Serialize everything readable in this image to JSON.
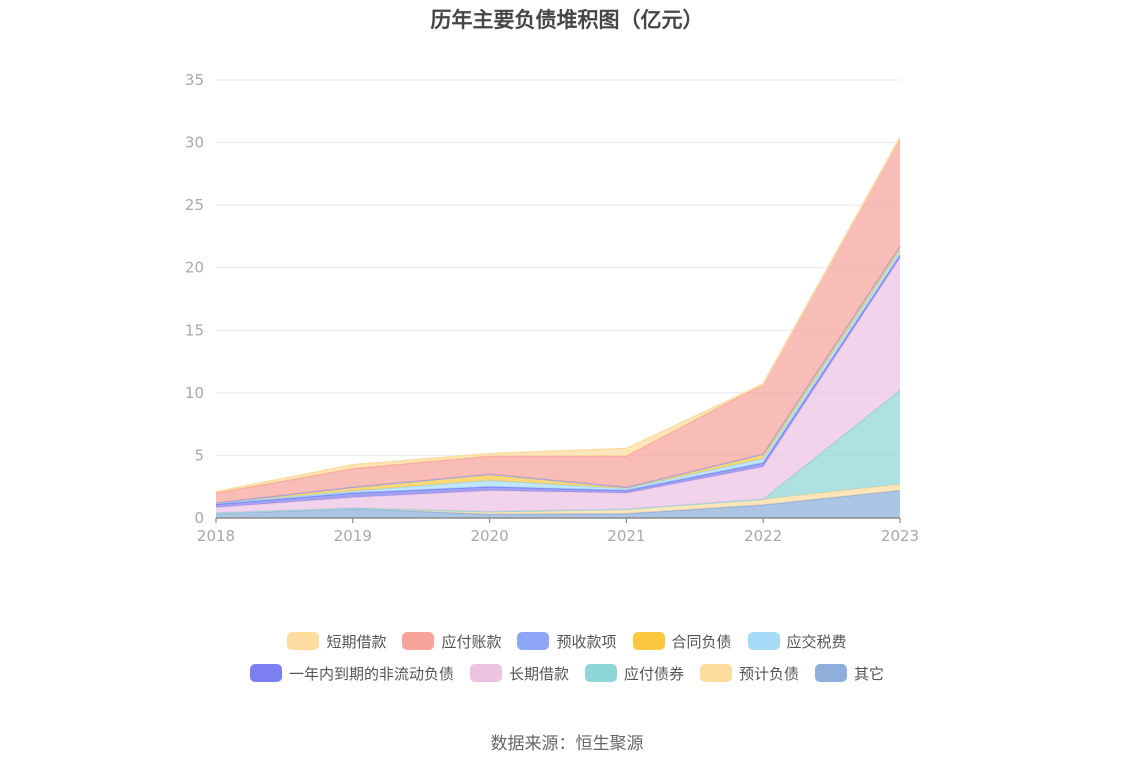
{
  "title": "历年主要负债堆积图（亿元）",
  "source": "数据来源：恒生聚源",
  "chart_data": {
    "type": "area",
    "stacked": true,
    "x": [
      "2018",
      "2019",
      "2020",
      "2021",
      "2022",
      "2023"
    ],
    "ylim": [
      0,
      35
    ],
    "yticks": [
      0,
      5,
      10,
      15,
      20,
      25,
      30,
      35
    ],
    "grid": true,
    "legend_position": "bottom",
    "series": [
      {
        "name": "其它",
        "color": "#8eaedb",
        "values": [
          0.35,
          0.75,
          0.3,
          0.35,
          1.05,
          2.2
        ]
      },
      {
        "name": "预计负债",
        "color": "#fddca0",
        "values": [
          0.05,
          0.05,
          0.2,
          0.35,
          0.45,
          0.5
        ]
      },
      {
        "name": "应付债券",
        "color": "#8fd6d6",
        "values": [
          0,
          0,
          0,
          0,
          0,
          7.5
        ]
      },
      {
        "name": "长期借款",
        "color": "#ecc3e3",
        "values": [
          0.45,
          0.85,
          1.7,
          1.3,
          2.6,
          10.6
        ]
      },
      {
        "name": "一年内到期的非流动负债",
        "color": "#7b7ff0",
        "values": [
          0.25,
          0.35,
          0.3,
          0.2,
          0.3,
          0.2
        ]
      },
      {
        "name": "应交税费",
        "color": "#a6dcf8",
        "values": [
          0.1,
          0.15,
          0.5,
          0.15,
          0.35,
          0.35
        ]
      },
      {
        "name": "合同负债",
        "color": "#fbc842",
        "values": [
          0,
          0.3,
          0.5,
          0.1,
          0.35,
          0.35
        ]
      },
      {
        "name": "预收款项",
        "color": "#8ea6f7",
        "values": [
          0,
          0,
          0,
          0,
          0,
          0
        ]
      },
      {
        "name": "应付账款",
        "color": "#f7a49b",
        "values": [
          0.8,
          1.5,
          1.45,
          2.5,
          5.6,
          8.7
        ]
      },
      {
        "name": "短期借款",
        "color": "#fddca0",
        "values": [
          0.1,
          0.3,
          0.2,
          0.6,
          0,
          0
        ]
      }
    ],
    "legend_order": [
      "短期借款",
      "应付账款",
      "预收款项",
      "合同负债",
      "应交税费",
      "一年内到期的非流动负债",
      "长期借款",
      "应付债券",
      "预计负债",
      "其它"
    ]
  }
}
